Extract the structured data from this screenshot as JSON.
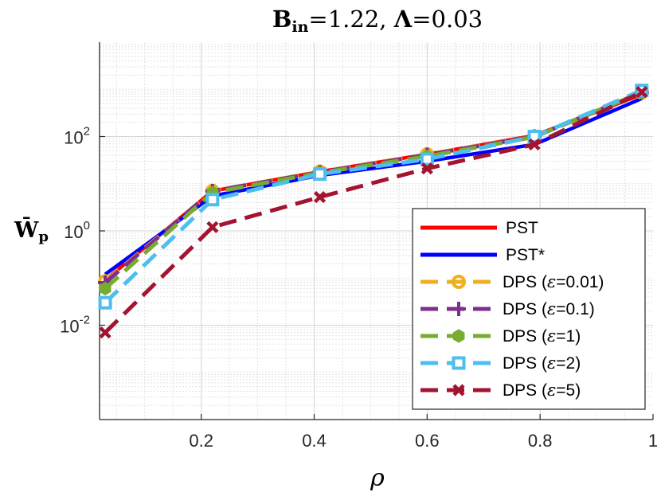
{
  "chart_data": {
    "type": "line",
    "title": {
      "text": "B_in=1.22, Λ=0.03",
      "b_main": "B",
      "b_sub": "in",
      "b_value": "=1.22, ",
      "lambda_main": "Λ",
      "lambda_value": "=0.03"
    },
    "xlabel": "ρ",
    "ylabel": {
      "main": "W̄",
      "sub": "p"
    },
    "xlim": [
      0.02,
      1.0
    ],
    "ylim": [
      0.0001,
      10000
    ],
    "yscale": "log",
    "grid": true,
    "legend_position": "lower-right",
    "x_ticks": [
      {
        "value": 0.2,
        "label": "0.2"
      },
      {
        "value": 0.4,
        "label": "0.4"
      },
      {
        "value": 0.6,
        "label": "0.6"
      },
      {
        "value": 0.8,
        "label": "0.8"
      },
      {
        "value": 1.0,
        "label": "1"
      }
    ],
    "y_ticks": [
      {
        "value": 0.01,
        "base": "10",
        "exp": "-2"
      },
      {
        "value": 1,
        "base": "10",
        "exp": "0"
      },
      {
        "value": 100,
        "base": "10",
        "exp": "2"
      }
    ],
    "x": [
      0.03,
      0.22,
      0.41,
      0.6,
      0.79,
      0.98
    ],
    "series": [
      {
        "name": "PST",
        "label": "PST",
        "color": "#ff0000",
        "dash": "solid",
        "marker": "none",
        "values": [
          0.09,
          7.0,
          18.0,
          42.0,
          105.0,
          780.0
        ]
      },
      {
        "name": "PST*",
        "label": "PST*",
        "color": "#0000ff",
        "dash": "solid",
        "marker": "none",
        "values": [
          0.12,
          5.5,
          15.0,
          30.0,
          68.0,
          640.0
        ]
      },
      {
        "name": "DPS (ε=0.01)",
        "label_prefix": "DPS (",
        "label_eps": "ε",
        "label_suffix": "=0.01)",
        "color": "#edb120",
        "dash": "dashed",
        "marker": "circle",
        "values": [
          0.085,
          7.0,
          18.0,
          42.0,
          100.0,
          860.0
        ]
      },
      {
        "name": "DPS (ε=0.1)",
        "label_prefix": "DPS (",
        "label_eps": "ε",
        "label_suffix": "=0.1)",
        "color": "#7e2f8e",
        "dash": "dashed",
        "marker": "plus",
        "values": [
          0.08,
          7.0,
          17.5,
          41.0,
          100.0,
          860.0
        ]
      },
      {
        "name": "DPS (ε=1)",
        "label_prefix": "DPS (",
        "label_eps": "ε",
        "label_suffix": "=1)",
        "color": "#77ac30",
        "dash": "dashed",
        "marker": "hexagon",
        "values": [
          0.06,
          6.5,
          17.0,
          38.0,
          98.0,
          860.0
        ]
      },
      {
        "name": "DPS (ε=2)",
        "label_prefix": "DPS (",
        "label_eps": "ε",
        "label_suffix": "=2)",
        "color": "#4dbeee",
        "dash": "dashed",
        "marker": "square",
        "values": [
          0.03,
          4.6,
          16.0,
          33.0,
          100.0,
          950.0
        ]
      },
      {
        "name": "DPS (ε=5)",
        "label_prefix": "DPS (",
        "label_eps": "ε",
        "label_suffix": "=5)",
        "color": "#a2142f",
        "dash": "dashed",
        "marker": "x",
        "values": [
          0.007,
          1.2,
          5.2,
          21.0,
          68.0,
          880.0
        ]
      }
    ]
  }
}
